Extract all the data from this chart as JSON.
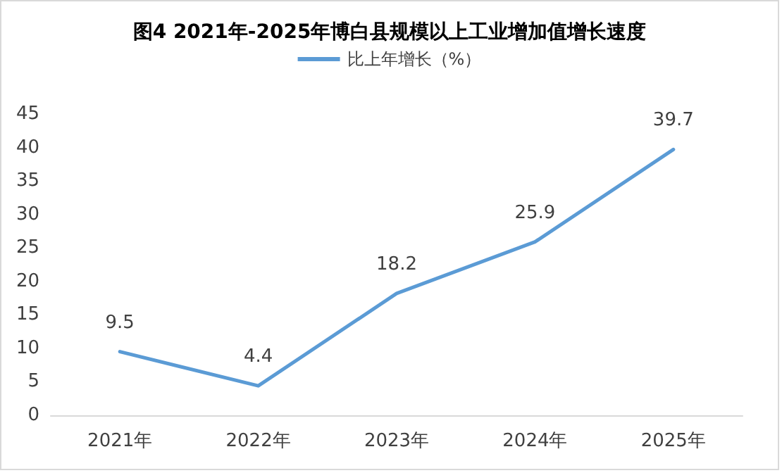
{
  "chart_data": {
    "type": "line",
    "title": "图4 2021年-2025年博白县规模以上工业增加值增长速度",
    "categories": [
      "2021年",
      "2022年",
      "2023年",
      "2024年",
      "2025年"
    ],
    "series": [
      {
        "name": "比上年增长（%）",
        "color": "#5b9bd5",
        "values": [
          9.5,
          4.4,
          18.2,
          25.9,
          39.7
        ]
      }
    ],
    "ylim": [
      0,
      45
    ],
    "yticks": [
      0,
      5,
      10,
      15,
      20,
      25,
      30,
      35,
      40,
      45
    ],
    "data_labels": true,
    "legend": "top",
    "grid": false,
    "marker": "none",
    "line_style": "solid"
  }
}
